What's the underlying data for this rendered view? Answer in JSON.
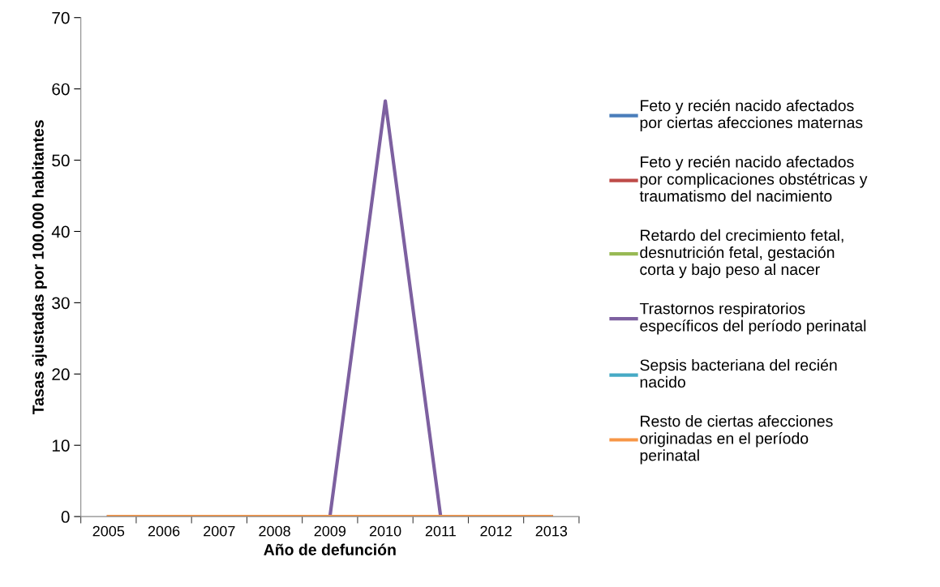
{
  "chart_data": {
    "type": "line",
    "xlabel": "Año de defunción",
    "ylabel": "Tasas ajustadas por 100.000 habitantes",
    "categories": [
      "2005",
      "2006",
      "2007",
      "2008",
      "2009",
      "2010",
      "2011",
      "2012",
      "2013"
    ],
    "series": [
      {
        "name": "Feto y recién nacido afectados\npor ciertas afecciones maternas",
        "color": "#4a7ebb",
        "values": [
          null,
          null,
          null,
          null,
          null,
          null,
          null,
          null,
          null
        ]
      },
      {
        "name": "Feto y recién nacido afectados\npor complicaciones obstétricas y\ntraumatismo del nacimiento",
        "color": "#be4b48",
        "values": [
          null,
          null,
          null,
          null,
          null,
          null,
          null,
          null,
          null
        ]
      },
      {
        "name": "Retardo del crecimiento fetal,\ndesnutrición fetal, gestación\ncorta y bajo peso al nacer",
        "color": "#98b954",
        "values": [
          null,
          null,
          null,
          null,
          null,
          null,
          null,
          null,
          null
        ]
      },
      {
        "name": "Trastornos respiratorios\nespecíficos del período perinatal",
        "color": "#7d60a0",
        "values": [
          0,
          0,
          0,
          0,
          0,
          58.3,
          0,
          0,
          0
        ]
      },
      {
        "name": "Sepsis bacteriana del recién\nnacido",
        "color": "#46aac5",
        "values": [
          null,
          null,
          null,
          null,
          null,
          null,
          null,
          null,
          null
        ]
      },
      {
        "name": "Resto de ciertas afecciones\noriginadas en el período\nperinatal",
        "color": "#f79646",
        "values": [
          0,
          0,
          0,
          0,
          0,
          0,
          0,
          0,
          0
        ]
      }
    ],
    "ylim": [
      0,
      70
    ],
    "yticks": [
      0,
      10,
      20,
      30,
      40,
      50,
      60,
      70
    ],
    "grid": false,
    "legend": "right",
    "marker": "none",
    "line_style": "solid"
  }
}
